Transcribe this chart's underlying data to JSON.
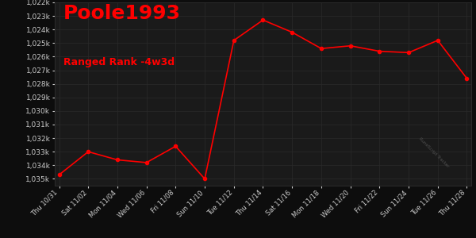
{
  "title": "Poole1993",
  "subtitle": "Ranged Rank -4w3d",
  "title_color": "#ff0000",
  "subtitle_color": "#ff0000",
  "bg_color": "#0d0d0d",
  "plot_bg_color": "#1a1a1a",
  "grid_color": "#2a2a2a",
  "line_color": "#ff0000",
  "marker_color": "#ff0000",
  "tick_label_color": "#cccccc",
  "x_labels": [
    "Thu 10/31",
    "Sat 11/02",
    "Mon 11/04",
    "Wed 11/06",
    "Fri 11/08",
    "Sun 11/10",
    "Tue 11/12",
    "Thu 11/14",
    "Sat 11/16",
    "Mon 11/18",
    "Wed 11/20",
    "Fri 11/22",
    "Sun 11/24",
    "Tue 11/26",
    "Thu 11/28"
  ],
  "x_positions": [
    0,
    2,
    4,
    6,
    8,
    10,
    12,
    14,
    16,
    18,
    20,
    22,
    24,
    26,
    28
  ],
  "y_values": [
    1034700,
    1033000,
    1033600,
    1033800,
    1032600,
    1035000,
    1024800,
    1023300,
    1024200,
    1025400,
    1025200,
    1025600,
    1025700,
    1024800,
    1027600
  ],
  "ylim_min": 1022000,
  "ylim_max": 1035500,
  "y_ticks": [
    1022000,
    1023000,
    1024000,
    1025000,
    1026000,
    1027000,
    1028000,
    1029000,
    1030000,
    1031000,
    1032000,
    1033000,
    1034000,
    1035000
  ],
  "figsize": [
    6.0,
    3.0
  ],
  "dpi": 100
}
